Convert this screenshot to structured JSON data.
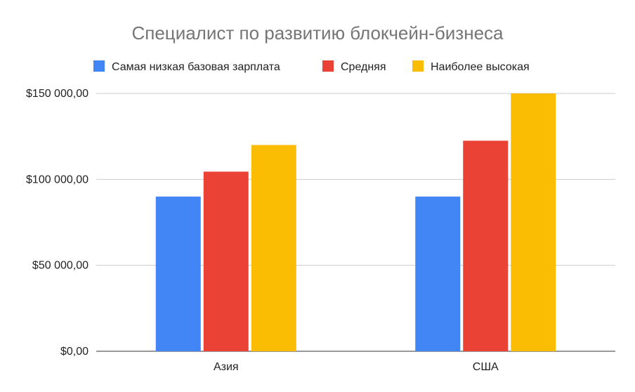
{
  "chart_data": {
    "type": "bar",
    "title": "Специалист по развитию блокчейн-бизнеса",
    "xlabel": "",
    "ylabel": "",
    "categories": [
      "Азия",
      "США"
    ],
    "series": [
      {
        "name": "Самая низкая базовая зарплата",
        "color": "#4285F4",
        "values": [
          90000,
          90000
        ]
      },
      {
        "name": "Средняя",
        "color": "#EA4335",
        "values": [
          104500,
          122500
        ]
      },
      {
        "name": "Наиболее высокая",
        "color": "#FBBC04",
        "values": [
          120000,
          150000
        ]
      }
    ],
    "ylim": [
      0,
      150000
    ],
    "yticks": [
      0,
      50000,
      100000,
      150000
    ],
    "ytick_labels": [
      "$0,00",
      "$50 000,00",
      "$100 000,00",
      "$150 000,00"
    ],
    "grid": true,
    "legend_position": "top"
  }
}
